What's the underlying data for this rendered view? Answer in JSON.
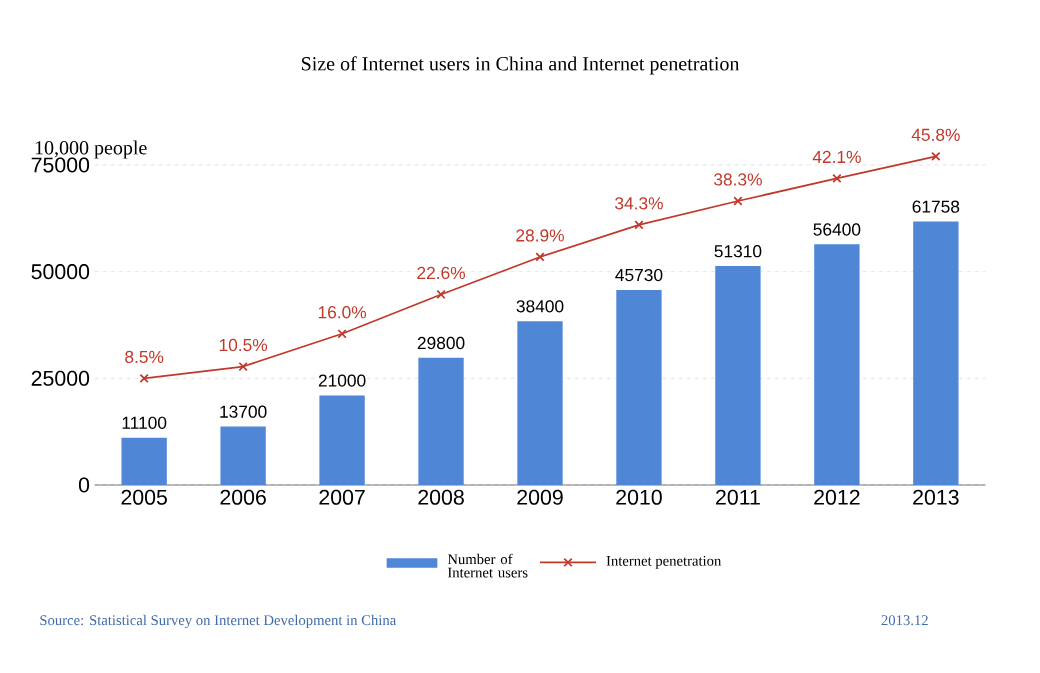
{
  "chart_data": {
    "type": "bar",
    "title": "Size of Internet users in China and Internet penetration",
    "ylabel": "10,000 people",
    "categories": [
      "2005",
      "2006",
      "2007",
      "2008",
      "2009",
      "2010",
      "2011",
      "2012",
      "2013"
    ],
    "series": [
      {
        "name": "Number of Internet users",
        "color": "#4f86d6",
        "values": [
          11100,
          13700,
          21000,
          29800,
          38400,
          45730,
          51310,
          56400,
          61758
        ],
        "value_labels": [
          "11100",
          "13700",
          "21000",
          "29800",
          "38400",
          "45730",
          "51310",
          "56400",
          "61758"
        ]
      },
      {
        "name": "Internet penetration",
        "type": "line",
        "axis": "y2",
        "color": "#c0392b",
        "marker": "cross",
        "values": [
          8.5,
          10.5,
          16.0,
          22.6,
          28.9,
          34.3,
          38.3,
          42.1,
          45.8
        ],
        "value_labels": [
          "8.5%",
          "10.5%",
          "16.0%",
          "22.6%",
          "28.9%",
          "34.3%",
          "38.3%",
          "42.1%",
          "45.8%"
        ]
      }
    ],
    "ylim": [
      0,
      75000
    ],
    "yticks": [
      0,
      25000,
      50000,
      75000
    ],
    "grid": "y",
    "legend": "bottom",
    "tick_labels": "xy",
    "annotations": [
      "Source: Statistical Survey on Internet Development in China",
      "2013.12"
    ]
  }
}
